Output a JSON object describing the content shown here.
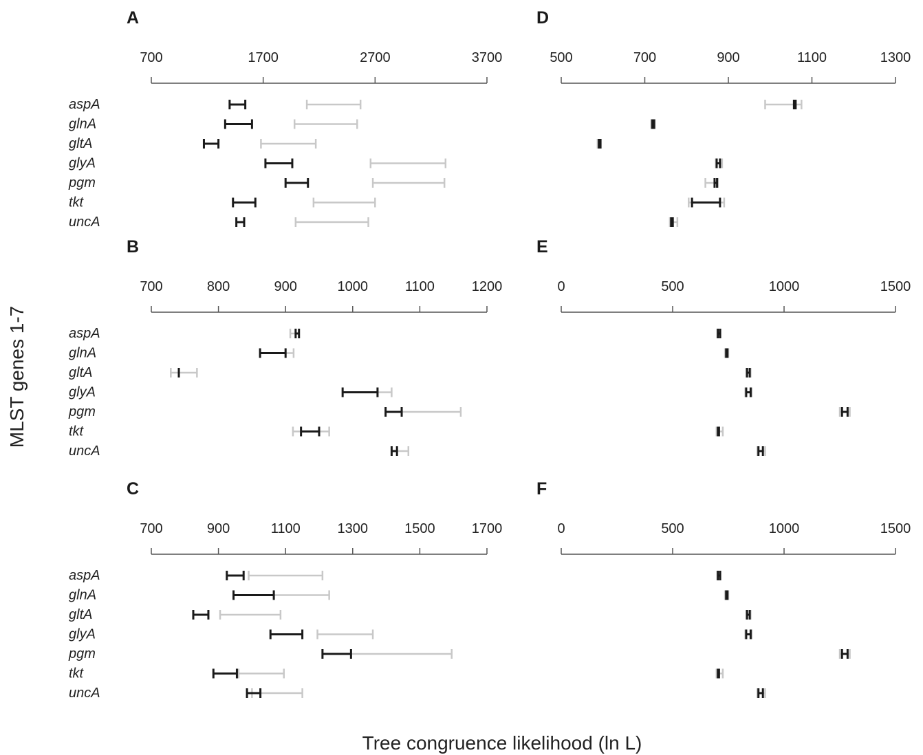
{
  "figure": {
    "ylabel": "MLST genes 1-7",
    "xlabel": "Tree congruence likelihood (ln L)"
  },
  "colors": {
    "dark": "#1a1a1a",
    "light": "#c8c8c8",
    "axis": "#555555"
  },
  "chart_data": [
    {
      "type": "range",
      "title": "A",
      "xlim": [
        700,
        3700
      ],
      "ticks": [
        700,
        1700,
        2700,
        3700
      ],
      "tick_labels": [
        "700",
        "1700",
        "2700",
        "3700"
      ],
      "categories": [
        "aspA",
        "glnA",
        "gltA",
        "glyA",
        "pgm",
        "tkt",
        "uncA"
      ],
      "series": [
        {
          "name": "",
          "color": "dark",
          "ranges": [
            [
              1400,
              1540
            ],
            [
              1360,
              1600
            ],
            [
              1170,
              1300
            ],
            [
              1720,
              1960
            ],
            [
              1900,
              2100
            ],
            [
              1430,
              1630
            ],
            [
              1460,
              1530
            ]
          ]
        },
        {
          "name": "",
          "color": "light",
          "ranges": [
            [
              2090,
              2570
            ],
            [
              1980,
              2540
            ],
            [
              1680,
              2170
            ],
            [
              2660,
              3330
            ],
            [
              2680,
              3320
            ],
            [
              2150,
              2700
            ],
            [
              1990,
              2640
            ]
          ]
        }
      ]
    },
    {
      "type": "range",
      "title": "B",
      "xlim": [
        700,
        1200
      ],
      "ticks": [
        700,
        800,
        900,
        1000,
        1100,
        1200
      ],
      "tick_labels": [
        "700",
        "800",
        "900",
        "1000",
        "1100",
        "1200"
      ],
      "categories": [
        "aspA",
        "glnA",
        "gltA",
        "glyA",
        "pgm",
        "tkt",
        "uncA"
      ],
      "series": [
        {
          "name": "",
          "color": "dark",
          "ranges": [
            [
              915,
              920
            ],
            [
              862,
              900
            ],
            [
              741,
              741
            ],
            [
              985,
              1037
            ],
            [
              1049,
              1073
            ],
            [
              923,
              950
            ],
            [
              1058,
              1066
            ]
          ]
        },
        {
          "name": "",
          "color": "light",
          "ranges": [
            [
              907,
              920
            ],
            [
              900,
              912
            ],
            [
              729,
              768
            ],
            [
              1037,
              1058
            ],
            [
              1073,
              1161
            ],
            [
              911,
              965
            ],
            [
              1066,
              1083
            ]
          ]
        }
      ]
    },
    {
      "type": "range",
      "title": "C",
      "xlim": [
        700,
        1700
      ],
      "ticks": [
        700,
        900,
        1100,
        1300,
        1500,
        1700
      ],
      "tick_labels": [
        "700",
        "900",
        "1100",
        "1300",
        "1500",
        "1700"
      ],
      "categories": [
        "aspA",
        "glnA",
        "gltA",
        "glyA",
        "pgm",
        "tkt",
        "uncA"
      ],
      "series": [
        {
          "name": "",
          "color": "dark",
          "ranges": [
            [
              925,
              975
            ],
            [
              945,
              1065
            ],
            [
              825,
              870
            ],
            [
              1055,
              1150
            ],
            [
              1210,
              1295
            ],
            [
              885,
              955
            ],
            [
              985,
              1025
            ]
          ]
        },
        {
          "name": "",
          "color": "light",
          "ranges": [
            [
              990,
              1210
            ],
            [
              1065,
              1230
            ],
            [
              905,
              1085
            ],
            [
              1195,
              1360
            ],
            [
              1295,
              1595
            ],
            [
              960,
              1095
            ],
            [
              1000,
              1150
            ]
          ]
        }
      ]
    },
    {
      "type": "range",
      "title": "D",
      "xlim": [
        500,
        1300
      ],
      "ticks": [
        500,
        700,
        900,
        1100,
        1300
      ],
      "tick_labels": [
        "500",
        "700",
        "900",
        "1100",
        "1300"
      ],
      "categories": [
        "aspA",
        "glnA",
        "gltA",
        "glyA",
        "pgm",
        "tkt",
        "uncA"
      ],
      "series": [
        {
          "name": "",
          "color": "dark",
          "ranges": [
            [
              1057,
              1061
            ],
            [
              718,
              722
            ],
            [
              590,
              594
            ],
            [
              872,
              880
            ],
            [
              867,
              873
            ],
            [
              813,
              880
            ],
            [
              763,
              767
            ]
          ]
        },
        {
          "name": "",
          "color": "light",
          "ranges": [
            [
              988,
              1075
            ],
            [
              715,
              725
            ],
            [
              587,
              593
            ],
            [
              870,
              885
            ],
            [
              845,
              875
            ],
            [
              805,
              890
            ],
            [
              760,
              778
            ]
          ]
        }
      ]
    },
    {
      "type": "range",
      "title": "E",
      "xlim": [
        0,
        1500
      ],
      "ticks": [
        0,
        500,
        1000,
        1500
      ],
      "tick_labels": [
        "0",
        "500",
        "1000",
        "1500"
      ],
      "categories": [
        "aspA",
        "glnA",
        "gltA",
        "glyA",
        "pgm",
        "tkt",
        "uncA"
      ],
      "series": [
        {
          "name": "",
          "color": "dark",
          "ranges": [
            [
              703,
              713
            ],
            [
              740,
              746
            ],
            [
              834,
              846
            ],
            [
              830,
              850
            ],
            [
              1260,
              1285
            ],
            [
              703,
              708
            ],
            [
              885,
              905
            ]
          ]
        },
        {
          "name": "",
          "color": "light",
          "ranges": [
            [
              700,
              715
            ],
            [
              735,
              750
            ],
            [
              830,
              850
            ],
            [
              826,
              855
            ],
            [
              1250,
              1295
            ],
            [
              697,
              725
            ],
            [
              880,
              915
            ]
          ]
        }
      ]
    },
    {
      "type": "range",
      "title": "F",
      "xlim": [
        0,
        1500
      ],
      "ticks": [
        0,
        500,
        1000,
        1500
      ],
      "tick_labels": [
        "0",
        "500",
        "1000",
        "1500"
      ],
      "categories": [
        "aspA",
        "glnA",
        "gltA",
        "glyA",
        "pgm",
        "tkt",
        "uncA"
      ],
      "series": [
        {
          "name": "",
          "color": "dark",
          "ranges": [
            [
              703,
              713
            ],
            [
              740,
              746
            ],
            [
              834,
              846
            ],
            [
              830,
              850
            ],
            [
              1260,
              1285
            ],
            [
              703,
              708
            ],
            [
              885,
              905
            ]
          ]
        },
        {
          "name": "",
          "color": "light",
          "ranges": [
            [
              700,
              715
            ],
            [
              735,
              750
            ],
            [
              830,
              850
            ],
            [
              826,
              855
            ],
            [
              1250,
              1295
            ],
            [
              697,
              725
            ],
            [
              880,
              915
            ]
          ]
        }
      ]
    }
  ]
}
